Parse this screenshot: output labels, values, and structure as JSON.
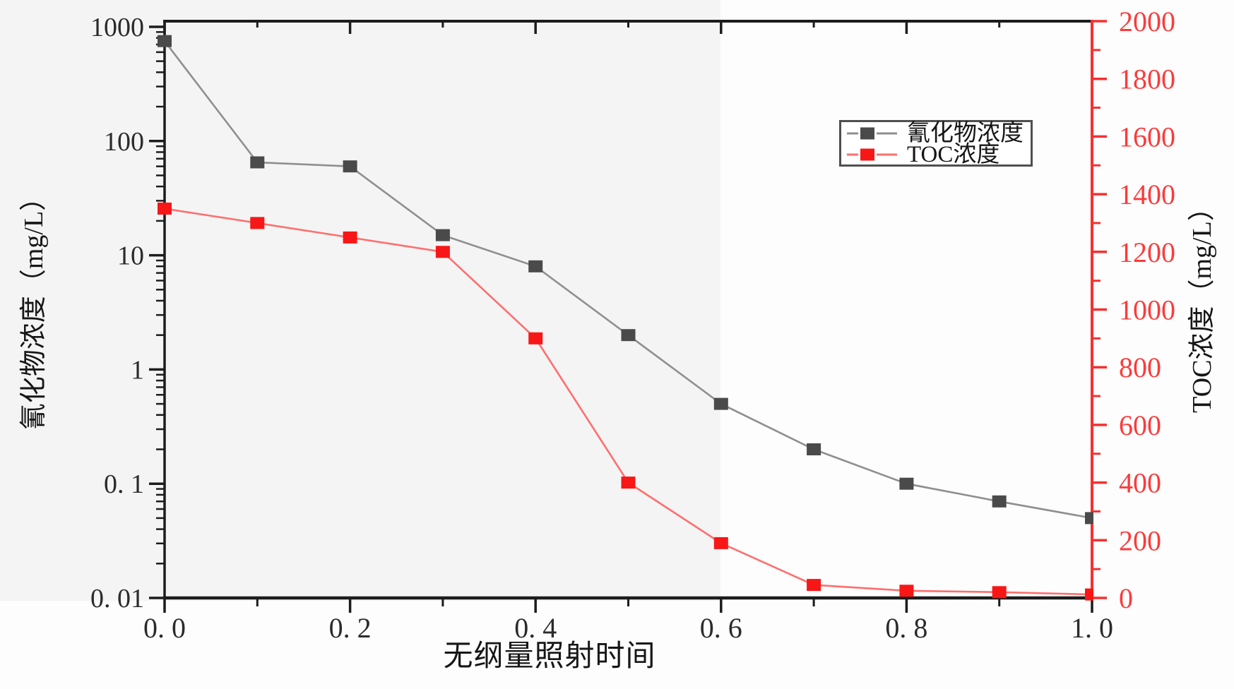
{
  "figure": {
    "background": "#fdfdfd",
    "band_color": "#f4f4f4"
  },
  "chart_data": {
    "type": "line",
    "title": "",
    "x": [
      0.0,
      0.1,
      0.2,
      0.3,
      0.4,
      0.5,
      0.6,
      0.7,
      0.8,
      0.9,
      1.0
    ],
    "x_axis": {
      "label": "无纲量照射时间",
      "range": [
        0,
        1
      ],
      "major_tick_values": [
        0,
        0.2,
        0.4,
        0.6,
        0.8,
        1.0
      ],
      "major_tick_labels": [
        "0. 0",
        "0. 2",
        "0. 4",
        "0. 6",
        "0. 8",
        "1. 0"
      ],
      "minor_tick_values": [
        0.1,
        0.3,
        0.5,
        0.7,
        0.9
      ],
      "color": "#1c1c1c",
      "tick_label_color": "#2b2b2b"
    },
    "left_axis": {
      "label": "氰化物浓度（mg/L）",
      "scale": "log",
      "range": [
        0.01,
        1120
      ],
      "major_tick_values": [
        1000,
        100,
        10,
        1,
        0.1,
        0.01
      ],
      "major_tick_labels": [
        "1000",
        "100",
        "10",
        "1",
        "0. 1",
        "0. 01"
      ],
      "log_minor_ticks": true,
      "color": "#1c1c1c",
      "tick_label_color": "#2b2b2b"
    },
    "right_axis": {
      "label": "TOC浓度（mg/L）",
      "scale": "linear",
      "range": [
        0,
        2000
      ],
      "major_tick_step": 200,
      "minor_tick_step": 100,
      "major_tick_values": [
        0,
        200,
        400,
        600,
        800,
        1000,
        1200,
        1400,
        1600,
        1800,
        2000
      ],
      "major_tick_labels": [
        "0",
        "200",
        "400",
        "600",
        "800",
        "1000",
        "1200",
        "1400",
        "1600",
        "1800",
        "2000"
      ],
      "color": "#f53030",
      "tick_label_color": "#fb3b3b"
    },
    "series": [
      {
        "name": "氰化物浓度",
        "axis": "left",
        "marker": "square",
        "marker_color": "#4a4a4a",
        "line_color": "#8f8f8f",
        "values": [
          750,
          65,
          60,
          15,
          8,
          2,
          0.5,
          0.2,
          0.1,
          0.07,
          0.05
        ]
      },
      {
        "name": "TOC浓度",
        "axis": "right",
        "marker": "square",
        "marker_color": "#f81717",
        "line_color": "#ff6e6e",
        "values": [
          1350,
          1300,
          1250,
          1200,
          900,
          400,
          190,
          45,
          25,
          20,
          12
        ]
      }
    ],
    "legend": {
      "position": "inside-upper-right",
      "border_color": "#4f4f4f",
      "entries": [
        "氰化物浓度",
        "TOC浓度"
      ]
    },
    "grid": false
  }
}
